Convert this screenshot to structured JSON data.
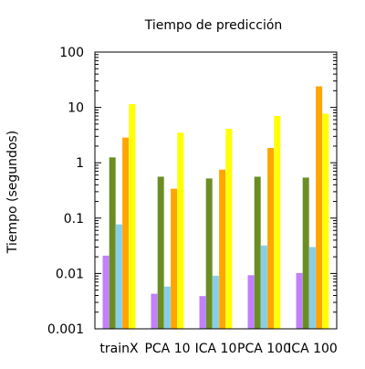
{
  "chart_data": {
    "type": "bar",
    "title": "Tiempo de predicción",
    "xlabel": "",
    "ylabel": "Tiempo (segundos)",
    "yscale": "log",
    "ylim": [
      0.001,
      100
    ],
    "yticks": [
      {
        "value": 0.001,
        "label": "0.001"
      },
      {
        "value": 0.01,
        "label": "0.01"
      },
      {
        "value": 0.1,
        "label": "0.1"
      },
      {
        "value": 1,
        "label": "1"
      },
      {
        "value": 10,
        "label": "10"
      },
      {
        "value": 100,
        "label": "100"
      }
    ],
    "categories": [
      "trainX",
      "PCA 10",
      "ICA 10",
      "PCA 100",
      "ICA 100"
    ],
    "series": [
      {
        "color": "#c080ff",
        "values": [
          0.021,
          0.0043,
          0.0039,
          0.0093,
          0.0102
        ]
      },
      {
        "color": "#6b8e23",
        "values": [
          1.25,
          0.56,
          0.52,
          0.56,
          0.54
        ]
      },
      {
        "color": "#87ceeb",
        "values": [
          0.077,
          0.0058,
          0.0091,
          0.032,
          0.03
        ]
      },
      {
        "color": "#ffa500",
        "values": [
          2.85,
          0.34,
          0.75,
          1.85,
          24.0
        ]
      },
      {
        "color": "#ffff00",
        "values": [
          11.5,
          3.5,
          4.1,
          7.0,
          7.7
        ]
      }
    ],
    "grid": false,
    "legend": "none"
  }
}
